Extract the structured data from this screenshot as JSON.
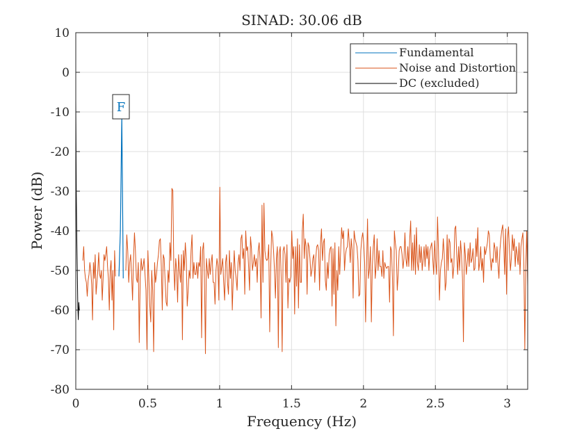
{
  "chart_data": {
    "type": "line",
    "title": "SINAD: 30.06 dB",
    "xlabel": "Frequency (Hz)",
    "ylabel": "Power (dB)",
    "xlim": [
      0,
      3.1416
    ],
    "ylim": [
      -80,
      10
    ],
    "x_ticks": [
      0,
      0.5,
      1,
      1.5,
      2,
      2.5,
      3
    ],
    "x_tick_labels": [
      "0",
      "0.5",
      "1",
      "1.5",
      "2",
      "2.5",
      "3"
    ],
    "y_ticks": [
      10,
      0,
      -10,
      -20,
      -30,
      -40,
      -50,
      -60,
      -70,
      -80
    ],
    "y_tick_labels": [
      "10",
      "0",
      "-10",
      "-20",
      "-30",
      "-40",
      "-50",
      "-60",
      "-70",
      "-80"
    ],
    "grid": true,
    "legend_placement": "top-right",
    "annotation": {
      "text": "F",
      "x": 0.32,
      "y": -8.6,
      "color": "#0072BD"
    },
    "series": [
      {
        "name": "Fundamental",
        "color": "#0072BD",
        "x": [
          0.3,
          0.31,
          0.32,
          0.33
        ],
        "y": [
          -51.5,
          -40,
          -11,
          -52
        ]
      },
      {
        "name": "Noise and Distortion",
        "color": "#D95319",
        "step": 0.00613592,
        "x_start": 0.049,
        "y_segments": [
          [
            -47.5,
            -44,
            -50,
            -52,
            -53,
            -56.5,
            -52.5,
            -51,
            -48,
            -50,
            -53.5,
            -62.5,
            -48,
            -52,
            -46,
            -56,
            -53,
            -50,
            -45.5,
            -51,
            -52,
            -50,
            -57.5,
            -52,
            -46,
            -47.5,
            -46,
            -44,
            -49,
            -52,
            -60,
            -50,
            -47.5,
            -57.5,
            -50,
            -65,
            -45,
            -51.5
          ],
          [
            -50,
            -41,
            -45,
            -53,
            -48,
            -46,
            -51,
            -57.5,
            -47,
            -40.5,
            -45,
            -52,
            -53,
            -48,
            -68.2,
            -52,
            -47,
            -50,
            -49,
            -47,
            -51,
            -55,
            -70,
            -45,
            -52,
            -59,
            -63,
            -50,
            -55,
            -70.5,
            -48,
            -53,
            -51,
            -48,
            -46,
            -42.5,
            -42,
            -49,
            -60,
            -46,
            -47,
            -53,
            -58,
            -59,
            -50,
            -53,
            -43,
            -47.5,
            -29.3,
            -29.8,
            -49,
            -55,
            -47,
            -50,
            -58,
            -46,
            -50,
            -53,
            -46,
            -67.5,
            -45,
            -50,
            -43,
            -47,
            -59,
            -55,
            -50,
            -52,
            -45,
            -41,
            -52,
            -48,
            -51,
            -51,
            -48,
            -52,
            -48,
            -49,
            -44,
            -67,
            -45,
            -43,
            -52,
            -71,
            -47,
            -50,
            -52,
            -47,
            -51,
            -48,
            -46,
            -53,
            -53,
            -58.5,
            -50,
            -47,
            -49,
            -57.5,
            -29,
            -51,
            -49,
            -47,
            -53,
            -57.5,
            -48,
            -46,
            -53,
            -56,
            -45,
            -52,
            -48,
            -60,
            -52,
            -45,
            -50,
            -52,
            -55,
            -48,
            -46,
            -50,
            -42,
            -41,
            -47,
            -44.5,
            -56,
            -40,
            -45,
            -44,
            -49,
            -55,
            -41.5,
            -44.5,
            -50,
            -48,
            -46,
            -49,
            -47,
            -53,
            -45,
            -43,
            -47.5,
            -62,
            -33.5,
            -53,
            -33,
            -45,
            -47,
            -47.5,
            -47,
            -43.5,
            -65.5,
            -50,
            -40,
            -41.5,
            -45,
            -50,
            -57,
            -47,
            -44,
            -69.5,
            -45.5,
            -44,
            -52,
            -70.5,
            -45,
            -44,
            -46,
            -53,
            -43.5,
            -59.5,
            -52,
            -53,
            -51.5,
            -40,
            -47,
            -44,
            -61,
            -44,
            -54,
            -42,
            -59.5,
            -43.5,
            -53,
            -53,
            -40,
            -35.8,
            -47,
            -42,
            -44,
            -56,
            -43,
            -44,
            -47,
            -51.5,
            -50,
            -47,
            -46,
            -53,
            -47,
            -44,
            -43.5,
            -45,
            -55,
            -43,
            -39.5,
            -47.5,
            -43,
            -42,
            -52.5,
            -55,
            -48,
            -52,
            -46,
            -44.5,
            -44,
            -59,
            -44.5,
            -56,
            -43,
            -64,
            -50,
            -55,
            -44,
            -51,
            -45,
            -39.2,
            -42,
            -40,
            -50,
            -46,
            -44.5,
            -44,
            -39.5,
            -43,
            -48,
            -42,
            -45,
            -57,
            -40,
            -42,
            -43,
            -44,
            -47.5,
            -56.5,
            -56,
            -45,
            -42,
            -40.5,
            -43,
            -48,
            -63,
            -49,
            -37,
            -52,
            -49.5,
            -44,
            -63,
            -49,
            -44,
            -41,
            -52,
            -49,
            -42,
            -50,
            -45,
            -49,
            -49,
            -51.5,
            -45,
            -52,
            -48,
            -49,
            -49.5,
            -49,
            -49,
            -58,
            -44,
            -45,
            -52,
            -66.5,
            -40,
            -43,
            -45,
            -55,
            -51,
            -45,
            -44,
            -44,
            -46,
            -49.5,
            -47,
            -40.5,
            -47,
            -49,
            -44,
            -49,
            -42,
            -37.5,
            -50,
            -43,
            -50,
            -41,
            -51,
            -39.2,
            -48,
            -50,
            -43.5,
            -48,
            -44,
            -50,
            -47,
            -44,
            -49,
            -43.5,
            -47,
            -44,
            -50,
            -45,
            -44,
            -43,
            -47,
            -51,
            -42.5,
            -47.5,
            -51,
            -36.5,
            -45,
            -57.5,
            -50,
            -48,
            -47,
            -42,
            -46,
            -55,
            -53,
            -41,
            -50,
            -42,
            -43,
            -48,
            -47,
            -52,
            -49,
            -39.5,
            -38.8,
            -46,
            -51,
            -44,
            -50,
            -42.5,
            -46,
            -52,
            -68,
            -43,
            -46,
            -51,
            -48,
            -44.5,
            -49,
            -43,
            -48,
            -47,
            -44.5,
            -50,
            -49.5,
            -42,
            -46.5,
            -39.2,
            -50,
            -48,
            -44,
            -50,
            -47,
            -53,
            -44,
            -46,
            -44.5,
            -43,
            -40,
            -41,
            -47,
            -50,
            -47,
            -48,
            -43,
            -44.5,
            -48,
            -44,
            -48.5,
            -52,
            -45,
            -42,
            -39.8,
            -38.5,
            -43,
            -51,
            -39.5,
            -56,
            -42,
            -39,
            -45,
            -50,
            -47,
            -41,
            -45,
            -42,
            -49,
            -44,
            -46,
            -48.5,
            -43,
            -51,
            -44,
            -42,
            -40.5,
            -48,
            -70,
            -49,
            -40,
            -54
          ]
        ]
      },
      {
        "name": "DC (excluded)",
        "color": "#000000",
        "x": [
          0,
          0.0035,
          0.007,
          0.0105,
          0.014,
          0.0175,
          0.021,
          0.0245
        ],
        "y": [
          -6.6,
          -30,
          -42,
          -50,
          -59,
          -62.5,
          -58,
          -60
        ]
      }
    ]
  }
}
